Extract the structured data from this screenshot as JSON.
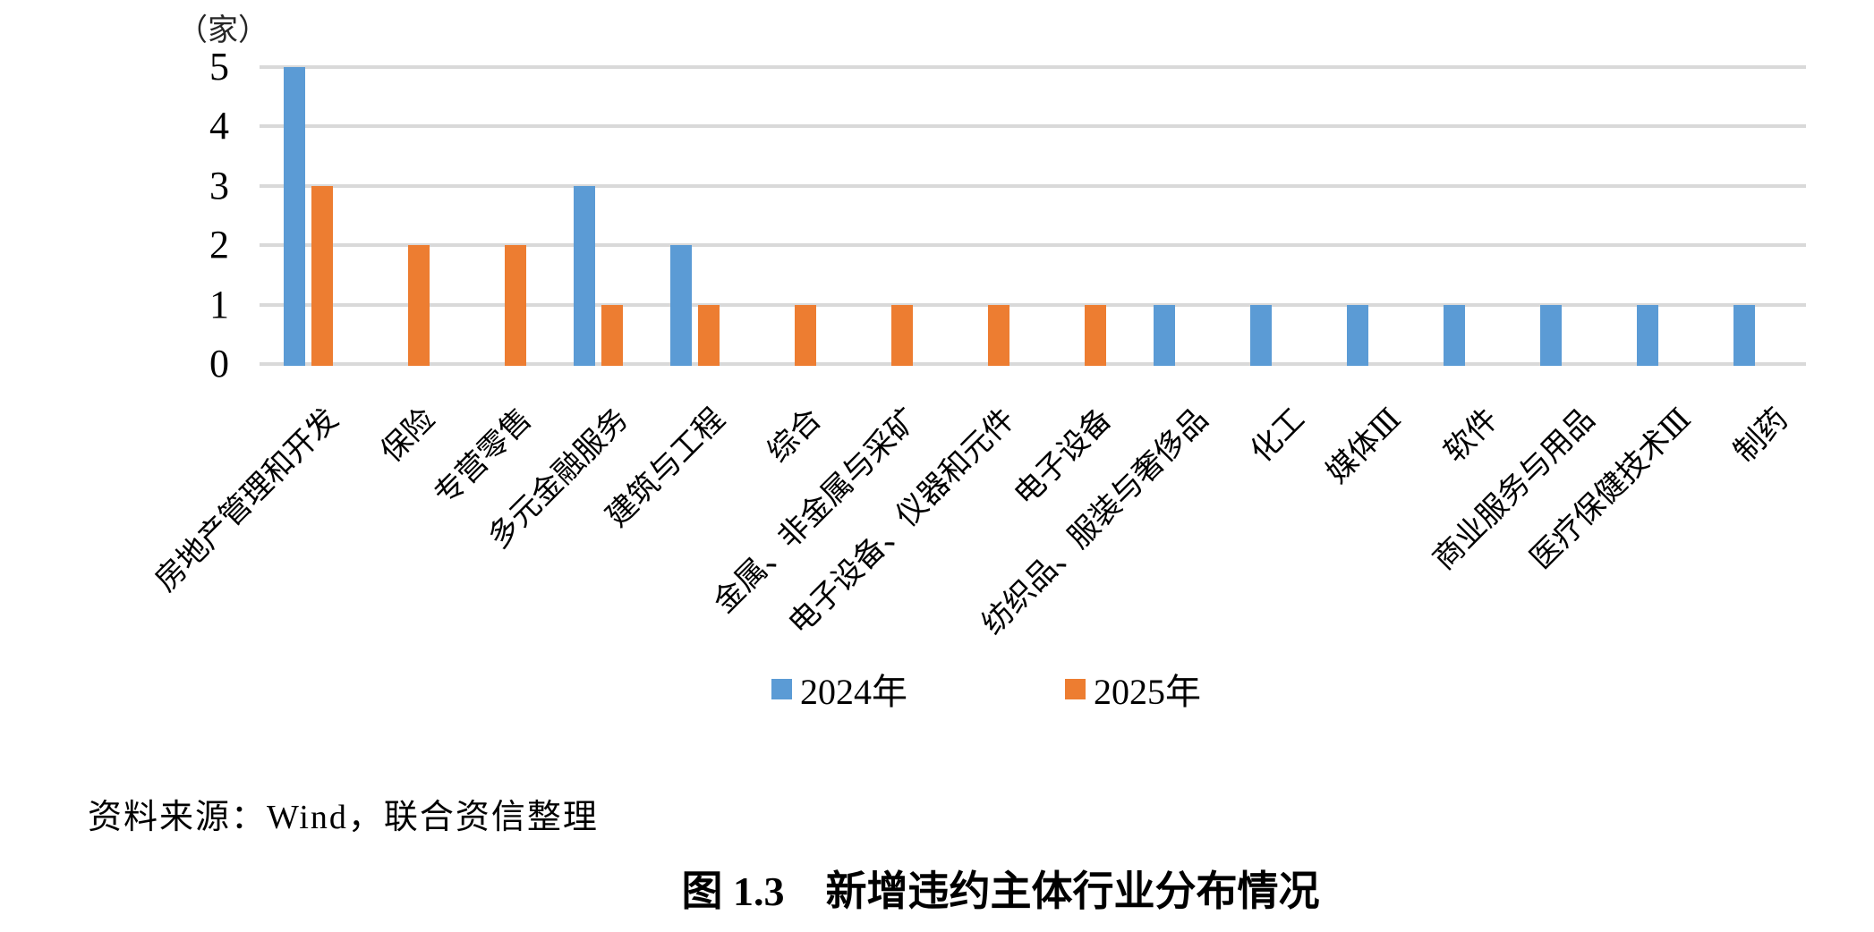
{
  "figure": {
    "caption": "图 1.3　新增违约主体行业分布情况",
    "source": "资料来源：Wind，联合资信整理"
  },
  "legend": {
    "items": [
      {
        "label": "2024年",
        "color": "#5b9bd5"
      },
      {
        "label": "2025年",
        "color": "#ed7d31"
      }
    ]
  },
  "chart_data": {
    "type": "bar",
    "title": "图 1.3　新增违约主体行业分布情况",
    "unit_label": "（家）",
    "xlabel": "",
    "ylabel": "（家）",
    "ylim": [
      0,
      5
    ],
    "yticks": [
      0,
      1,
      2,
      3,
      4,
      5
    ],
    "grid": "horizontal-only",
    "gridline_color": "#d9d9d9",
    "legend_position": "bottom",
    "categories": [
      "房地产管理和开发",
      "保险",
      "专营零售",
      "多元金融服务",
      "建筑与工程",
      "综合",
      "金属、非金属与采矿",
      "电子设备、仪器和元件",
      "电子设备",
      "纺织品、服装与奢侈品",
      "化工",
      "媒体Ⅲ",
      "软件",
      "商业服务与用品",
      "医疗保健技术Ⅲ",
      "制药"
    ],
    "series": [
      {
        "name": "2024年",
        "color": "#5b9bd5",
        "values": [
          5,
          0,
          0,
          3,
          2,
          0,
          0,
          0,
          0,
          1,
          1,
          1,
          1,
          1,
          1,
          1
        ]
      },
      {
        "name": "2025年",
        "color": "#ed7d31",
        "values": [
          3,
          2,
          2,
          1,
          1,
          1,
          1,
          1,
          1,
          0,
          0,
          0,
          0,
          0,
          0,
          0
        ]
      }
    ]
  }
}
